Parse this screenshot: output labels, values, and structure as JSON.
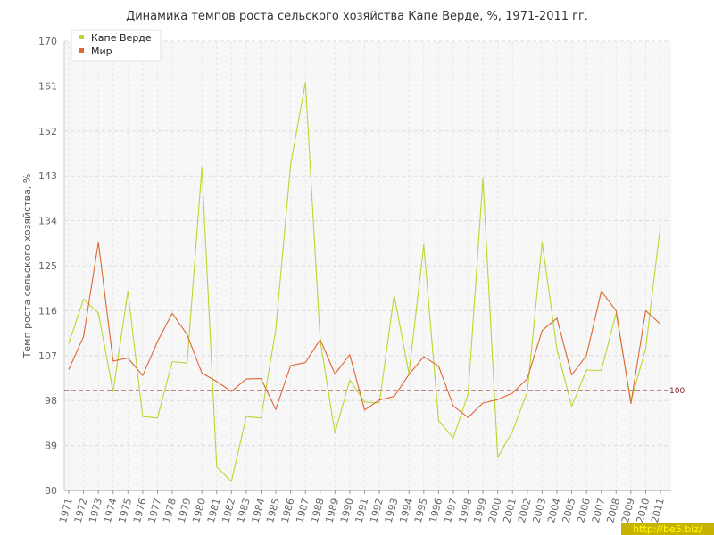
{
  "chart_data": {
    "type": "line",
    "title": "Динамика темпов роста сельского хозяйства Капе Верде, %, 1971-2011 гг.",
    "ylabel": "Темп роста сельского хозяйства, %",
    "xlabel": "",
    "ylim": [
      80,
      170
    ],
    "yticks": [
      80,
      89,
      98,
      107,
      116,
      125,
      134,
      143,
      152,
      161,
      170
    ],
    "x": [
      "1971",
      "1972",
      "1973",
      "1974",
      "1975",
      "1976",
      "1977",
      "1978",
      "1979",
      "1980",
      "1981",
      "1982",
      "1983",
      "1984",
      "1985",
      "1986",
      "1987",
      "1988",
      "1989",
      "1990",
      "1991",
      "1992",
      "1993",
      "1994",
      "1995",
      "1996",
      "1997",
      "1998",
      "1999",
      "2000",
      "2001",
      "2002",
      "2003",
      "2004",
      "2005",
      "2006",
      "2007",
      "2008",
      "2009",
      "2010",
      "2011"
    ],
    "series": [
      {
        "name": "Капе Верде",
        "color": "#bbd630",
        "values": [
          109.4,
          118.3,
          115.5,
          99.8,
          119.9,
          94.8,
          94.5,
          105.8,
          105.5,
          144.7,
          84.7,
          81.8,
          94.8,
          94.5,
          112.2,
          145.2,
          161.7,
          110.0,
          91.5,
          102.1,
          97.7,
          97.5,
          119.1,
          103.4,
          129.2,
          94.0,
          90.5,
          99.3,
          142.5,
          86.6,
          91.9,
          99.7,
          129.7,
          108.3,
          96.8,
          104.1,
          104.0,
          115.5,
          97.8,
          108.4,
          133.1
        ]
      },
      {
        "name": "Мир",
        "color": "#dd6633",
        "values": [
          104.2,
          110.8,
          129.7,
          105.9,
          106.5,
          103.0,
          109.8,
          115.5,
          111.2,
          103.5,
          101.8,
          99.8,
          102.3,
          102.4,
          96.2,
          105.0,
          105.6,
          110.2,
          103.3,
          107.2,
          96.1,
          98.1,
          98.8,
          103.2,
          106.8,
          104.9,
          96.9,
          94.6,
          97.5,
          98.2,
          99.5,
          102.4,
          112.0,
          114.5,
          103.1,
          107.0,
          119.9,
          116.0,
          97.4,
          116.0,
          113.3
        ]
      }
    ],
    "reference_line": {
      "value": 100,
      "label": "100",
      "color": "#8b1a1a"
    },
    "legend_position": "top-left",
    "grid": true
  },
  "watermark": "http://be5.biz/"
}
